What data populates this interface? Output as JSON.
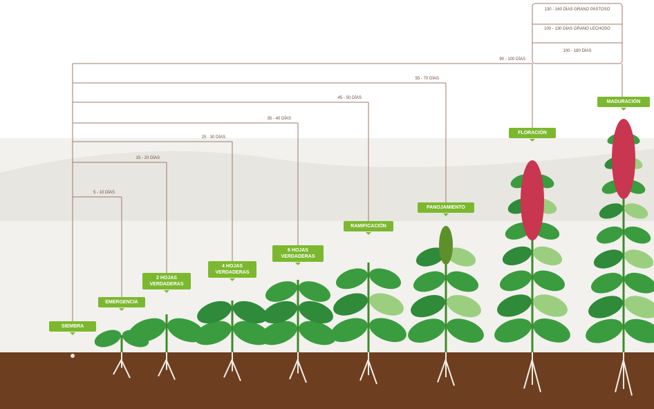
{
  "stages": [
    {
      "label": "SIEMBRA"
    },
    {
      "label": "EMERGENCIA"
    },
    {
      "label": "2 HOJAS VERDADERAS"
    },
    {
      "label": "4 HOJAS VERDADERAS"
    },
    {
      "label": "6 HOJAS VERDADERAS"
    },
    {
      "label": "RAMIFICACIÓN"
    },
    {
      "label": "PANOJAMIENTO"
    },
    {
      "label": "FLORACIÓN"
    },
    {
      "label": "MADURACIÓN"
    }
  ],
  "periods": [
    {
      "label": "5 - 10 DÍAS"
    },
    {
      "label": "15 - 20 DÍAS"
    },
    {
      "label": "25 - 30 DÍAS"
    },
    {
      "label": "35 - 40 DÍAS"
    },
    {
      "label": "45 - 50 DÍAS"
    },
    {
      "label": "55 - 70 DÍAS"
    },
    {
      "label": "90 - 100 DÍAS"
    }
  ],
  "top_box": [
    {
      "label": "130 - 160 DÍAS GRANO PASTOSO"
    },
    {
      "label": "100 - 130 DÍAS GRANO LECHOSO"
    },
    {
      "label": "100 - 180 DÍAS"
    }
  ]
}
